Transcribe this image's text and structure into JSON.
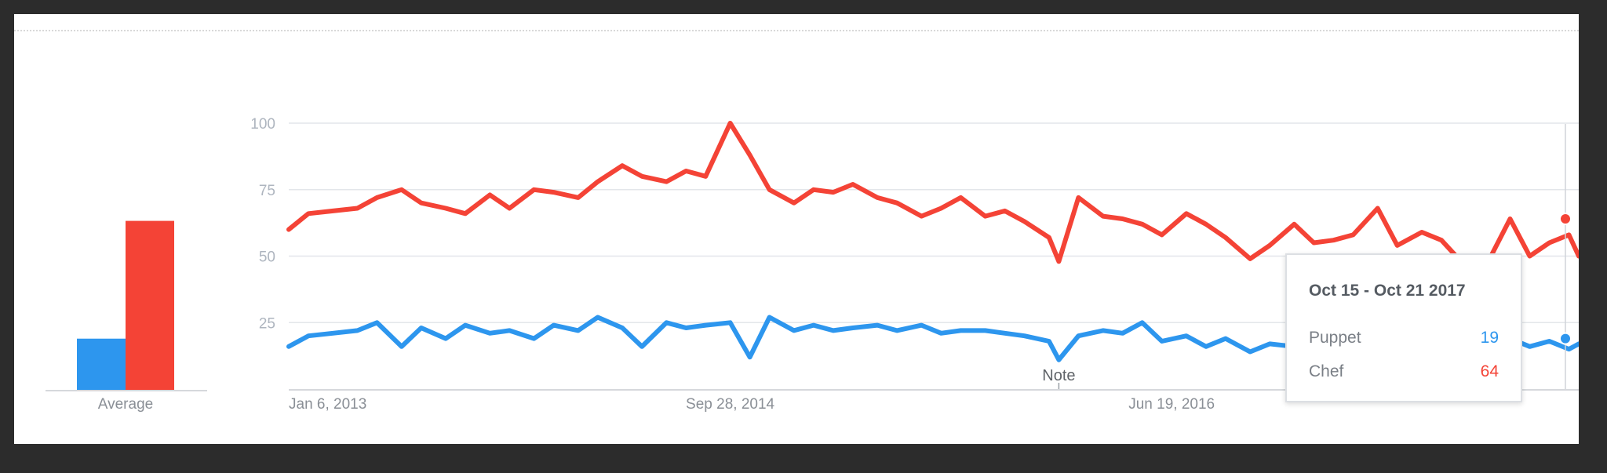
{
  "chart_data": {
    "type": "line",
    "colors": {
      "puppet": "#2d96ee",
      "chef": "#f44336"
    },
    "y_ticks": [
      25,
      50,
      75,
      100
    ],
    "ylim": [
      0,
      100
    ],
    "x_tick_labels": [
      "Jan 6, 2013",
      "Sep 28, 2014",
      "Jun 19, 2016"
    ],
    "x_tick_dates": [
      "2013-01-06",
      "2014-09-28",
      "2016-06-19"
    ],
    "xlim": [
      "2013-01-06",
      "2018-01-21"
    ],
    "grid": true,
    "average": {
      "label": "Average",
      "values": {
        "puppet": 20,
        "chef": 66
      }
    },
    "annotation": {
      "label": "Note",
      "date": "2016-01-10"
    },
    "series": [
      {
        "name": "Puppet",
        "color": "#2d96ee",
        "points": [
          [
            "2013-01-06",
            16
          ],
          [
            "2013-02-03",
            20
          ],
          [
            "2013-03-10",
            21
          ],
          [
            "2013-04-14",
            22
          ],
          [
            "2013-05-12",
            25
          ],
          [
            "2013-06-16",
            16
          ],
          [
            "2013-07-14",
            23
          ],
          [
            "2013-08-18",
            19
          ],
          [
            "2013-09-15",
            24
          ],
          [
            "2013-10-20",
            21
          ],
          [
            "2013-11-17",
            22
          ],
          [
            "2013-12-22",
            19
          ],
          [
            "2014-01-19",
            24
          ],
          [
            "2014-02-23",
            22
          ],
          [
            "2014-03-23",
            27
          ],
          [
            "2014-04-27",
            23
          ],
          [
            "2014-05-25",
            16
          ],
          [
            "2014-06-29",
            25
          ],
          [
            "2014-07-27",
            23
          ],
          [
            "2014-08-24",
            24
          ],
          [
            "2014-09-28",
            25
          ],
          [
            "2014-10-26",
            12
          ],
          [
            "2014-11-23",
            27
          ],
          [
            "2014-12-28",
            22
          ],
          [
            "2015-01-25",
            24
          ],
          [
            "2015-02-22",
            22
          ],
          [
            "2015-03-22",
            23
          ],
          [
            "2015-04-26",
            24
          ],
          [
            "2015-05-24",
            22
          ],
          [
            "2015-06-28",
            24
          ],
          [
            "2015-07-26",
            21
          ],
          [
            "2015-08-23",
            22
          ],
          [
            "2015-09-27",
            22
          ],
          [
            "2015-10-25",
            21
          ],
          [
            "2015-11-22",
            20
          ],
          [
            "2015-12-27",
            18
          ],
          [
            "2016-01-10",
            11
          ],
          [
            "2016-02-07",
            20
          ],
          [
            "2016-03-13",
            22
          ],
          [
            "2016-04-10",
            21
          ],
          [
            "2016-05-08",
            25
          ],
          [
            "2016-06-05",
            18
          ],
          [
            "2016-07-10",
            20
          ],
          [
            "2016-08-07",
            16
          ],
          [
            "2016-09-04",
            19
          ],
          [
            "2016-10-09",
            14
          ],
          [
            "2016-11-06",
            17
          ],
          [
            "2016-12-11",
            16
          ],
          [
            "2017-01-08",
            15
          ],
          [
            "2017-02-05",
            16
          ],
          [
            "2017-03-05",
            17
          ],
          [
            "2017-04-09",
            16
          ],
          [
            "2017-05-07",
            17
          ],
          [
            "2017-06-11",
            15
          ],
          [
            "2017-07-09",
            15
          ],
          [
            "2017-08-06",
            16
          ],
          [
            "2017-09-10",
            14
          ],
          [
            "2017-10-15",
            19
          ],
          [
            "2017-11-12",
            16
          ],
          [
            "2017-12-10",
            18
          ],
          [
            "2018-01-07",
            15
          ],
          [
            "2018-01-21",
            17
          ]
        ]
      },
      {
        "name": "Chef",
        "color": "#f44336",
        "points": [
          [
            "2013-01-06",
            60
          ],
          [
            "2013-02-03",
            66
          ],
          [
            "2013-03-10",
            67
          ],
          [
            "2013-04-14",
            68
          ],
          [
            "2013-05-12",
            72
          ],
          [
            "2013-06-16",
            75
          ],
          [
            "2013-07-14",
            70
          ],
          [
            "2013-08-18",
            68
          ],
          [
            "2013-09-15",
            66
          ],
          [
            "2013-10-20",
            73
          ],
          [
            "2013-11-17",
            68
          ],
          [
            "2013-12-22",
            75
          ],
          [
            "2014-01-19",
            74
          ],
          [
            "2014-02-23",
            72
          ],
          [
            "2014-03-23",
            78
          ],
          [
            "2014-04-27",
            84
          ],
          [
            "2014-05-25",
            80
          ],
          [
            "2014-06-29",
            78
          ],
          [
            "2014-07-27",
            82
          ],
          [
            "2014-08-24",
            80
          ],
          [
            "2014-09-28",
            100
          ],
          [
            "2014-10-26",
            88
          ],
          [
            "2014-11-23",
            75
          ],
          [
            "2014-12-28",
            70
          ],
          [
            "2015-01-25",
            75
          ],
          [
            "2015-02-22",
            74
          ],
          [
            "2015-03-22",
            77
          ],
          [
            "2015-04-26",
            72
          ],
          [
            "2015-05-24",
            70
          ],
          [
            "2015-06-28",
            65
          ],
          [
            "2015-07-26",
            68
          ],
          [
            "2015-08-23",
            72
          ],
          [
            "2015-09-27",
            65
          ],
          [
            "2015-10-25",
            67
          ],
          [
            "2015-11-22",
            63
          ],
          [
            "2015-12-27",
            57
          ],
          [
            "2016-01-10",
            48
          ],
          [
            "2016-02-07",
            72
          ],
          [
            "2016-03-13",
            65
          ],
          [
            "2016-04-10",
            64
          ],
          [
            "2016-05-08",
            62
          ],
          [
            "2016-06-05",
            58
          ],
          [
            "2016-07-10",
            66
          ],
          [
            "2016-08-07",
            62
          ],
          [
            "2016-09-04",
            57
          ],
          [
            "2016-10-09",
            49
          ],
          [
            "2016-11-06",
            54
          ],
          [
            "2016-12-11",
            62
          ],
          [
            "2017-01-08",
            55
          ],
          [
            "2017-02-05",
            56
          ],
          [
            "2017-03-05",
            58
          ],
          [
            "2017-04-09",
            68
          ],
          [
            "2017-05-07",
            54
          ],
          [
            "2017-06-11",
            59
          ],
          [
            "2017-07-09",
            56
          ],
          [
            "2017-08-06",
            48
          ],
          [
            "2017-09-10",
            46
          ],
          [
            "2017-10-15",
            64
          ],
          [
            "2017-11-12",
            50
          ],
          [
            "2017-12-10",
            55
          ],
          [
            "2018-01-07",
            58
          ],
          [
            "2018-01-21",
            50
          ]
        ]
      }
    ]
  },
  "tooltip": {
    "date": "Oct 15 - Oct 21 2017",
    "rows": [
      {
        "name": "Puppet",
        "value": "19",
        "color": "#2d96ee"
      },
      {
        "name": "Chef",
        "value": "64",
        "color": "#f44336"
      }
    ]
  }
}
